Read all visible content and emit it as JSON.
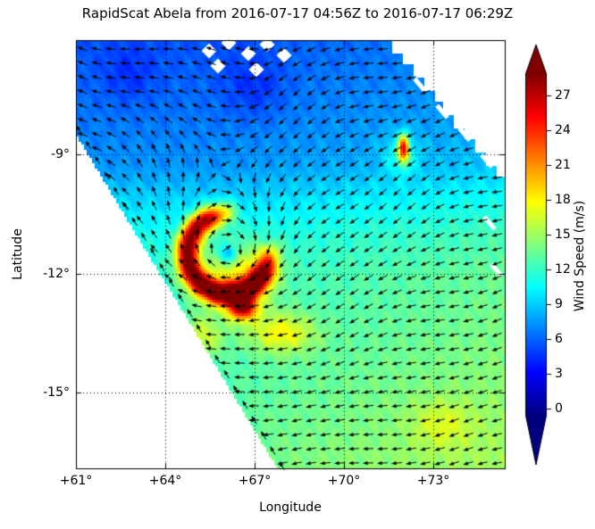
{
  "chart_data": {
    "type": "heatmap",
    "title": "RapidScat Abela from 2016-07-17 04:56Z to 2016-07-17 06:29Z",
    "xlabel": "Longitude",
    "ylabel": "Latitude",
    "xlim": [
      61,
      75.4
    ],
    "ylim": [
      -16.91,
      -6.12
    ],
    "x_tick_labels": [
      "+61°",
      "+64°",
      "+67°",
      "+70°",
      "+73°"
    ],
    "x_tick_values": [
      61,
      64,
      67,
      70,
      73
    ],
    "y_tick_labels": [
      "-9°",
      "-12°",
      "-15°"
    ],
    "y_tick_values": [
      -9,
      -12,
      -15
    ],
    "grid": "dotted",
    "colorbar": {
      "label": "Wind Speed (m/s)",
      "tick_labels": [
        "0",
        "3",
        "6",
        "9",
        "12",
        "15",
        "18",
        "21",
        "24",
        "27"
      ],
      "tick_values": [
        0,
        3,
        6,
        9,
        12,
        15,
        18,
        21,
        24,
        27
      ],
      "colormap": "jet",
      "extend": "both",
      "scale_min": -0.5,
      "scale_max": 28.9
    },
    "cyclone": {
      "name": "Abela",
      "center_lon": 66.1,
      "center_lat": -11.5,
      "peak_wind_mps": 29
    },
    "swath": {
      "left_edge": [
        [
          61.0,
          -8.44
        ],
        [
          67.81,
          -16.91
        ]
      ],
      "right_edge": [
        [
          71.35,
          -6.12
        ],
        [
          75.4,
          -9.79
        ]
      ],
      "missing_cells": [
        [
          65.47,
          -6.39
        ],
        [
          66.13,
          -6.19
        ],
        [
          66.79,
          -6.46
        ],
        [
          67.42,
          -6.23
        ],
        [
          67.99,
          -6.5
        ],
        [
          65.77,
          -6.77
        ],
        [
          67.06,
          -6.86
        ]
      ],
      "edge_gaps": [
        [
          72.55,
          -7.25
        ],
        [
          73.3,
          -7.92
        ],
        [
          74.05,
          -8.49
        ],
        [
          74.8,
          -9.16
        ],
        [
          74.89,
          -10.73
        ],
        [
          75.13,
          -11.92
        ]
      ]
    },
    "wind_field": {
      "background_profile": {
        "lat": [
          -17,
          -13.5,
          -12,
          -11,
          -10.2,
          -9.3,
          -8,
          -6.1
        ],
        "speed_mps": [
          13.8,
          12.5,
          12,
          11,
          9.5,
          7.5,
          6.5,
          5.5
        ]
      },
      "east_side_boost": {
        "start_lon": 66,
        "full_lon": 75,
        "amount_mps": 1.5
      },
      "features": [
        {
          "type": "eyewall_ring",
          "name": "eyewall",
          "lon": 66.1,
          "lat": -11.5,
          "radius_deg": 1.35,
          "width_deg": 0.38,
          "amp_mps": 18,
          "gap_azimuth_deg": 45,
          "lat_scale": 1.34
        },
        {
          "type": "gaussian",
          "name": "southern-eyewall-blob",
          "lon": 66.6,
          "lat": -12.85,
          "slon": 0.45,
          "slat": 0.3,
          "amp_mps": 14
        },
        {
          "type": "gaussian",
          "name": "eye-minimum",
          "lon": 66.1,
          "lat": -11.5,
          "slon": 0.3,
          "slat": 0.25,
          "amp_mps": -6
        },
        {
          "type": "gaussian",
          "name": "storm-halo",
          "lon": 66.4,
          "lat": -12.1,
          "slon": 1.2,
          "slat": 0.9,
          "amp_mps": 5.5
        },
        {
          "type": "gaussian",
          "name": "southeast-band",
          "lon": 67.9,
          "lat": -13.5,
          "slon": 1.1,
          "slat": 0.5,
          "amp_mps": 5
        },
        {
          "type": "gaussian",
          "name": "southwest-band",
          "lon": 65.2,
          "lat": -13.6,
          "slon": 0.7,
          "slat": 0.5,
          "amp_mps": 4
        },
        {
          "type": "gaussian",
          "name": "northeast-spot",
          "lon": 72.0,
          "lat": -8.85,
          "slon": 0.18,
          "slat": 0.35,
          "amp_mps": 15
        },
        {
          "type": "gaussian",
          "name": "northeast-spot-halo",
          "lon": 71.9,
          "lat": -9.0,
          "slon": 0.6,
          "slat": 0.5,
          "amp_mps": 3
        },
        {
          "type": "gaussian",
          "name": "north-dark-patch",
          "lon": 67.0,
          "lat": -7.3,
          "slon": 1.0,
          "slat": 0.8,
          "amp_mps": -1.8
        },
        {
          "type": "gaussian",
          "name": "northwest-dark-patch",
          "lon": 62.8,
          "lat": -7.0,
          "slon": 0.9,
          "slat": 0.7,
          "amp_mps": -1.5
        },
        {
          "type": "gaussian",
          "name": "southeast-far-streak",
          "lon": 73.3,
          "lat": -15.8,
          "slon": 1.0,
          "slat": 0.6,
          "amp_mps": 2.5
        }
      ]
    },
    "vectors": {
      "style": "quiver-arrows",
      "color": "#000000",
      "rotation": "clockwise",
      "background": {
        "u": -1.0,
        "v": 0.0
      },
      "vortex": {
        "lon": 66.1,
        "lat": -11.5,
        "strength": 3.0,
        "core_radius": 0.55
      }
    }
  },
  "colors": {
    "background": "#ffffff",
    "axes": "#000000",
    "grid": "#000000",
    "arrows": "#000000"
  }
}
